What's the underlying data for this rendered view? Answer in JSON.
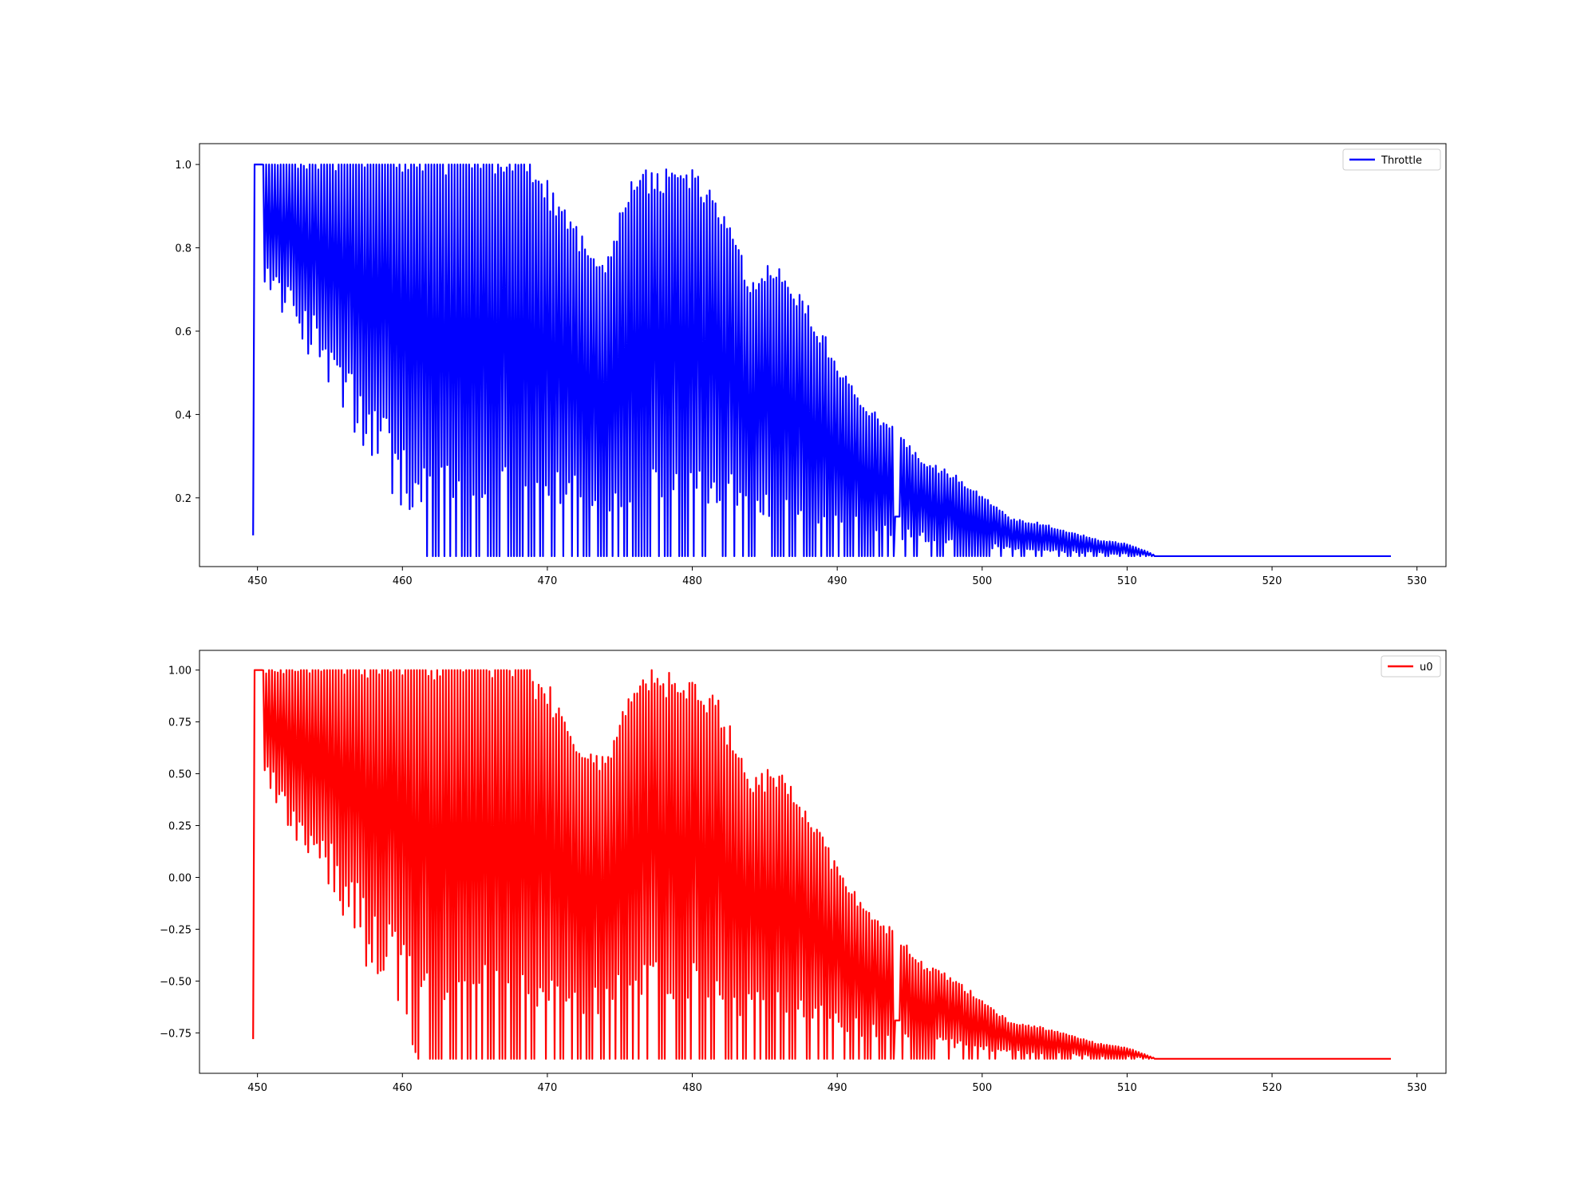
{
  "chart_data": [
    {
      "type": "line",
      "title": "",
      "xlabel": "",
      "ylabel": "",
      "xlim": [
        446,
        532
      ],
      "ylim": [
        0.035,
        1.05
      ],
      "xticks": [
        450,
        460,
        470,
        480,
        490,
        500,
        510,
        520,
        530
      ],
      "yticks": [
        0.2,
        0.4,
        0.6,
        0.8,
        1.0
      ],
      "ytick_labels": [
        "0.2",
        "0.4",
        "0.6",
        "0.8",
        "1.0"
      ],
      "grid": false,
      "legend": "upper-right",
      "series": [
        {
          "name": "Throttle",
          "color": "#0000ff",
          "signal": {
            "t_start": 449.7,
            "t_end": 528.2,
            "dt": 0.1,
            "start_value": 0.11,
            "y_min": 0.06,
            "y_max": 1.0,
            "settle_value": 0.06,
            "envelope": [
              [
                449.8,
                1.0
              ],
              [
                452,
                1.0
              ],
              [
                458,
                1.0
              ],
              [
                468,
                1.0
              ],
              [
                470,
                0.97
              ],
              [
                472,
                0.86
              ],
              [
                474,
                0.79
              ],
              [
                476,
                1.0
              ],
              [
                478,
                1.0
              ],
              [
                480,
                1.0
              ],
              [
                482,
                0.92
              ],
              [
                484,
                0.74
              ],
              [
                486,
                0.77
              ],
              [
                488,
                0.67
              ],
              [
                490,
                0.53
              ],
              [
                492,
                0.43
              ],
              [
                494,
                0.37
              ],
              [
                496,
                0.29
              ],
              [
                498,
                0.26
              ],
              [
                500,
                0.21
              ],
              [
                502,
                0.15
              ],
              [
                504,
                0.14
              ],
              [
                506,
                0.12
              ],
              [
                508,
                0.1
              ],
              [
                510,
                0.09
              ],
              [
                511.5,
                0.07
              ],
              [
                512,
                0.06
              ]
            ],
            "trough_edge": [
              [
                450,
                0.75
              ],
              [
                452,
                0.62
              ],
              [
                454,
                0.52
              ],
              [
                456,
                0.38
              ],
              [
                458,
                0.25
              ],
              [
                460,
                0.16
              ],
              [
                461,
                0.06
              ],
              [
                528.2,
                0.06
              ]
            ],
            "plateau": [
              494,
              494.4,
              0.155
            ]
          }
        }
      ]
    },
    {
      "type": "line",
      "title": "",
      "xlabel": "",
      "ylabel": "",
      "xlim": [
        446,
        532
      ],
      "ylim": [
        -0.945,
        1.095
      ],
      "xticks": [
        450,
        460,
        470,
        480,
        490,
        500,
        510,
        520,
        530
      ],
      "yticks": [
        -0.75,
        -0.5,
        -0.25,
        0.0,
        0.25,
        0.5,
        0.75,
        1.0
      ],
      "ytick_labels": [
        "−0.75",
        "−0.50",
        "−0.25",
        "0.00",
        "0.25",
        "0.50",
        "0.75",
        "1.00"
      ],
      "grid": false,
      "legend": "upper-right",
      "series": [
        {
          "name": "u0",
          "color": "#ff0000",
          "signal": {
            "t_start": 449.7,
            "t_end": 528.2,
            "dt": 0.1,
            "start_value": -0.78,
            "y_min": -0.875,
            "y_max": 1.0,
            "settle_value": -0.875,
            "envelope": [
              [
                449.8,
                1.0
              ],
              [
                452,
                1.0
              ],
              [
                458,
                1.0
              ],
              [
                468,
                1.0
              ],
              [
                470,
                0.94
              ],
              [
                472,
                0.72
              ],
              [
                474,
                0.58
              ],
              [
                476,
                1.0
              ],
              [
                478,
                1.0
              ],
              [
                480,
                1.0
              ],
              [
                482,
                0.84
              ],
              [
                484,
                0.48
              ],
              [
                486,
                0.55
              ],
              [
                488,
                0.34
              ],
              [
                490,
                0.06
              ],
              [
                492,
                -0.14
              ],
              [
                494,
                -0.26
              ],
              [
                496,
                -0.42
              ],
              [
                498,
                -0.48
              ],
              [
                500,
                -0.59
              ],
              [
                502,
                -0.7
              ],
              [
                504,
                -0.72
              ],
              [
                506,
                -0.76
              ],
              [
                508,
                -0.8
              ],
              [
                510,
                -0.82
              ],
              [
                511.5,
                -0.86
              ],
              [
                512,
                -0.875
              ]
            ],
            "trough_edge": [
              [
                450,
                0.48
              ],
              [
                452,
                0.25
              ],
              [
                454,
                0.05
              ],
              [
                456,
                -0.22
              ],
              [
                458,
                -0.5
              ],
              [
                460,
                -0.68
              ],
              [
                461,
                -0.875
              ],
              [
                528.2,
                -0.875
              ]
            ],
            "plateau": [
              494,
              494.4,
              -0.69
            ]
          }
        }
      ]
    }
  ]
}
